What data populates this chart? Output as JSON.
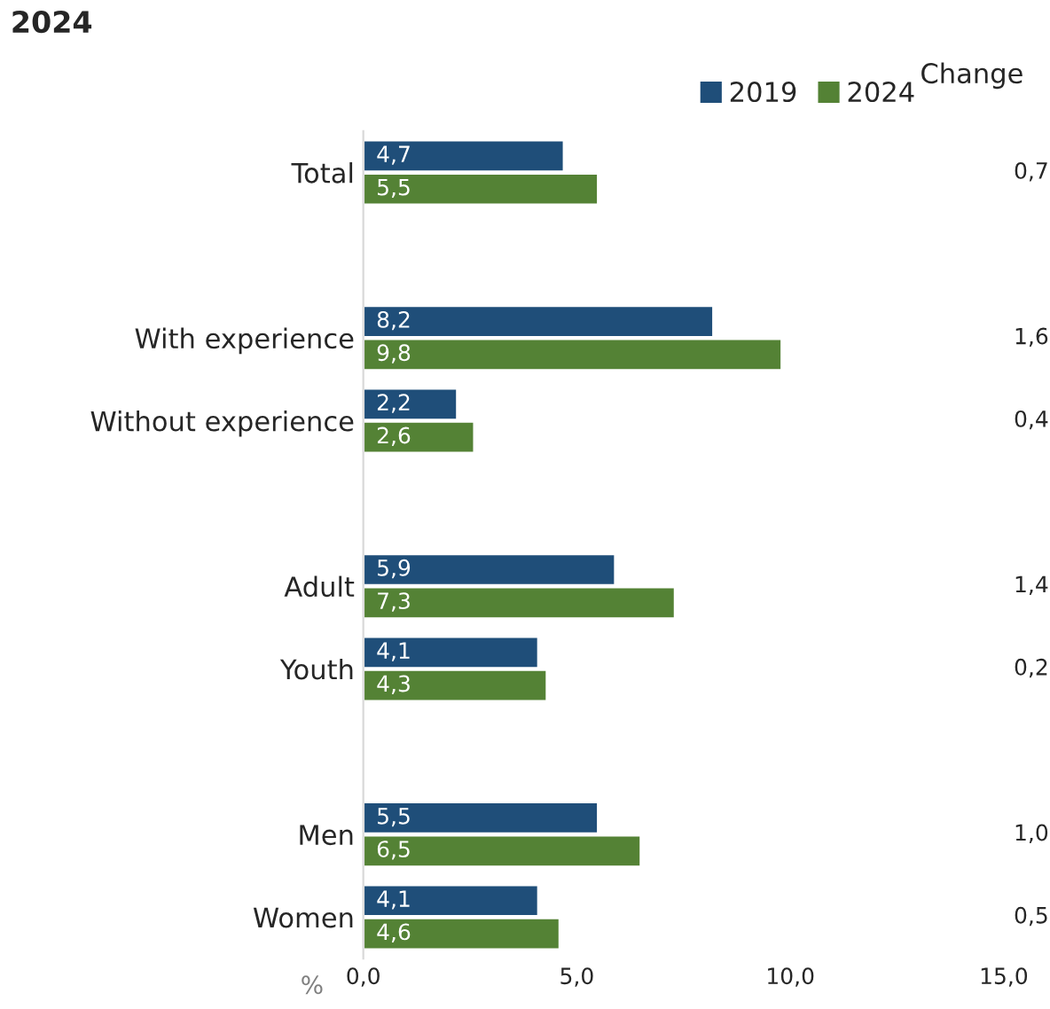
{
  "chart_data": {
    "type": "bar",
    "orientation": "horizontal",
    "title": "2024",
    "xlabel": "%",
    "categories": [
      "Total",
      null,
      "With experience",
      "Without experience",
      null,
      "Adult",
      "Youth",
      null,
      "Men",
      "Women"
    ],
    "series": [
      {
        "name": "2019",
        "color": "#1f4e79",
        "values": [
          4.7,
          null,
          8.2,
          2.2,
          null,
          5.9,
          4.1,
          null,
          5.5,
          4.1
        ],
        "value_labels": [
          "4,7",
          null,
          "8,2",
          "2,2",
          null,
          "5,9",
          "4,1",
          null,
          "5,5",
          "4,1"
        ]
      },
      {
        "name": "2024",
        "color": "#548235",
        "values": [
          5.5,
          null,
          9.8,
          2.6,
          null,
          7.3,
          4.3,
          null,
          6.5,
          4.6
        ],
        "value_labels": [
          "5,5",
          null,
          "9,8",
          "2,6",
          null,
          "7,3",
          "4,3",
          null,
          "6,5",
          "4,6"
        ]
      }
    ],
    "xlim": [
      0,
      15
    ],
    "xticks": [
      {
        "value": 0,
        "label": "0,0"
      },
      {
        "value": 5,
        "label": "5,0"
      },
      {
        "value": 10,
        "label": "10,0"
      },
      {
        "value": 15,
        "label": "15,0"
      }
    ],
    "annotations": [
      "Change",
      "0,7",
      "1,6",
      "0,4",
      "1,4",
      "0,2",
      "1,0",
      "0,5"
    ],
    "legend": "top right",
    "grid": false
  }
}
